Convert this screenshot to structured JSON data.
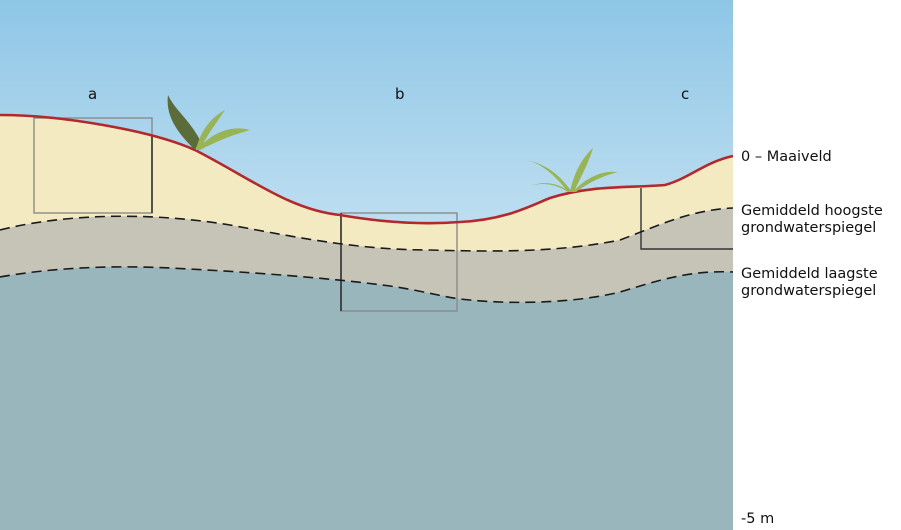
{
  "columns": [
    "a",
    "b",
    "c"
  ],
  "levels": {
    "surface": "0 – Maaiveld",
    "ghg_line1": "Gemiddeld hoogste",
    "ghg_line2": "grondwaterspiegel",
    "glg_line1": "Gemiddeld laagste",
    "glg_line2": "grondwaterspiegel",
    "bottom": "-5 m"
  },
  "colors": {
    "sky_top": "#8ec6e6",
    "sky_bottom": "#ffffff",
    "soil": "#f4eac2",
    "fluctuation_zone": "#c6c4b6",
    "groundwater": "#9ab6bd",
    "surface_line": "#b3282d",
    "plant_dark": "#5b6b3a",
    "plant_light": "#98b455"
  }
}
